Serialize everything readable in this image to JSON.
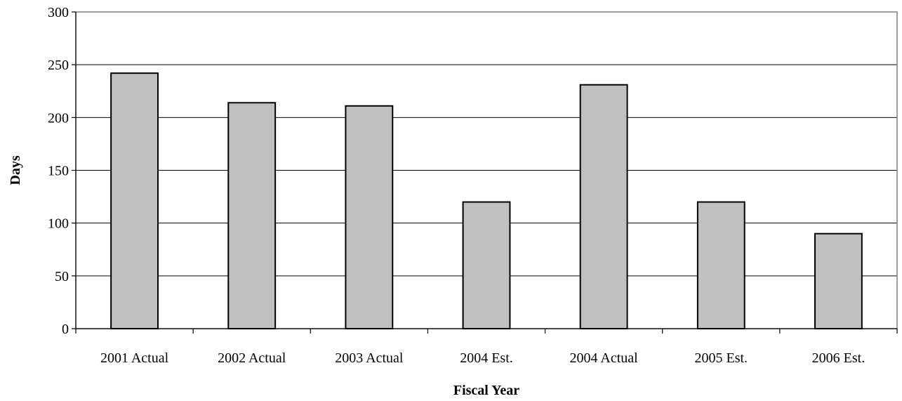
{
  "chart_data": {
    "type": "bar",
    "categories": [
      "2001 Actual",
      "2002 Actual",
      "2003 Actual",
      "2004 Est.",
      "2004 Actual",
      "2005 Est.",
      "2006 Est."
    ],
    "values": [
      242,
      214,
      211,
      120,
      231,
      120,
      90
    ],
    "xlabel": "Fiscal Year",
    "ylabel": "Days",
    "ylim": [
      0,
      300
    ],
    "yticks": [
      0,
      50,
      100,
      150,
      200,
      250,
      300
    ],
    "grid": true,
    "legend": "none",
    "bar_color": "#c0c0c0",
    "bar_edge_color": "#000000"
  }
}
